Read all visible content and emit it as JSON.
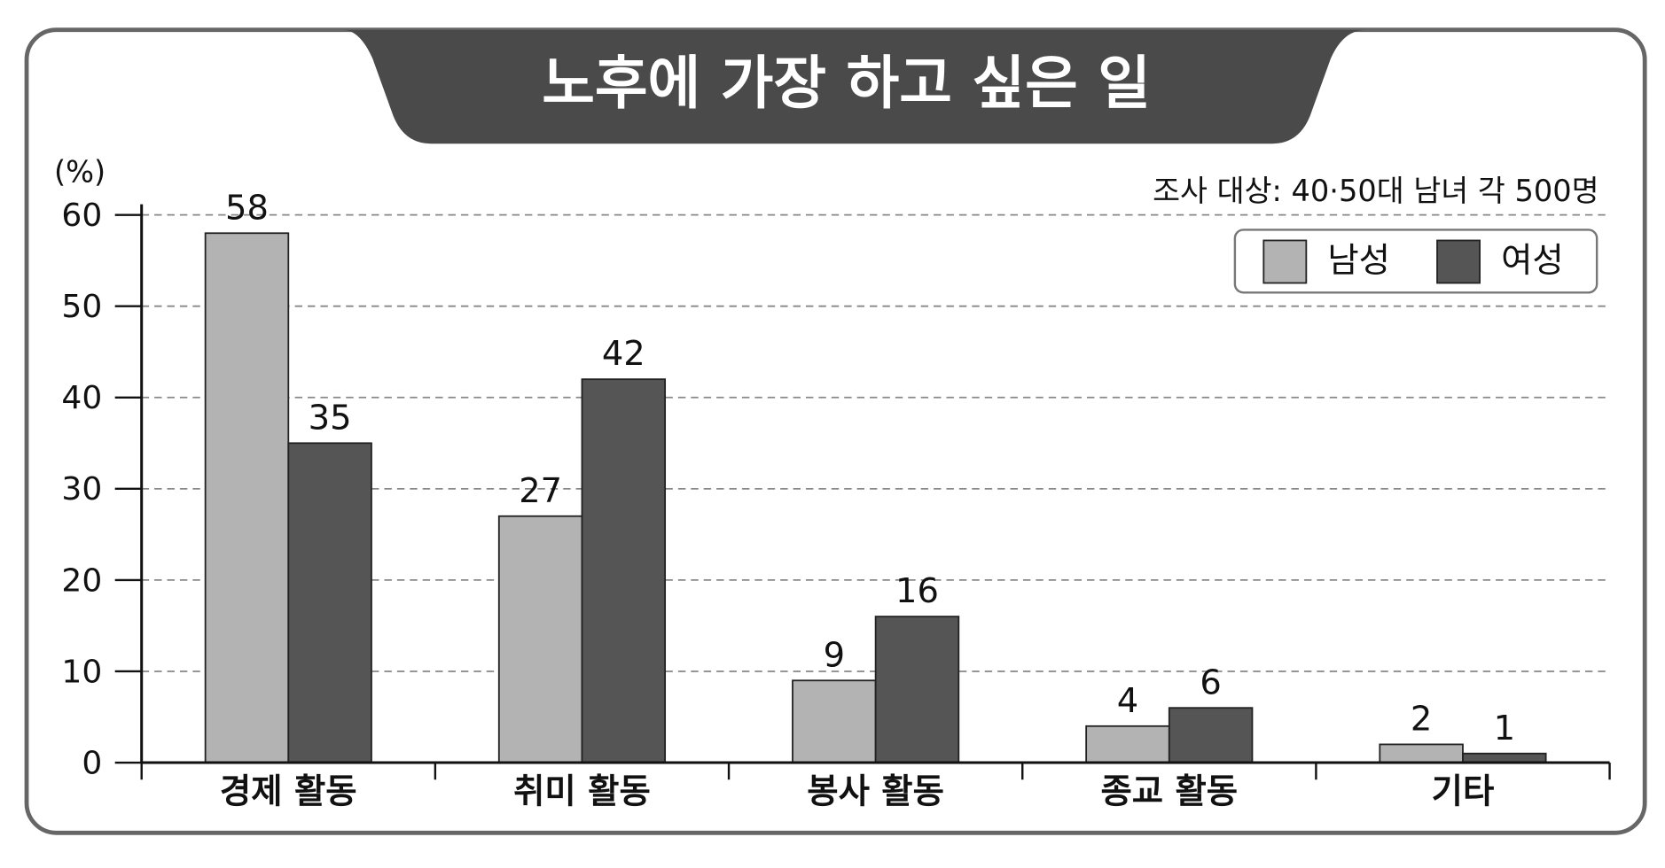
{
  "chart_data": {
    "type": "bar",
    "title": "노후에 가장 하고 싶은 일",
    "unit_label": "(%)",
    "note": "조사 대상: 40·50대 남녀 각 500명",
    "categories": [
      "경제 활동",
      "취미 활동",
      "봉사 활동",
      "종교 활동",
      "기타"
    ],
    "series": [
      {
        "name": "남성",
        "color": "#b3b3b3",
        "values": [
          58,
          27,
          9,
          4,
          2
        ]
      },
      {
        "name": "여성",
        "color": "#555555",
        "values": [
          35,
          42,
          16,
          6,
          1
        ]
      }
    ],
    "ylim": [
      0,
      60
    ],
    "yticks": [
      0,
      10,
      20,
      30,
      40,
      50,
      60
    ],
    "grid": true,
    "legend": "top-right"
  }
}
